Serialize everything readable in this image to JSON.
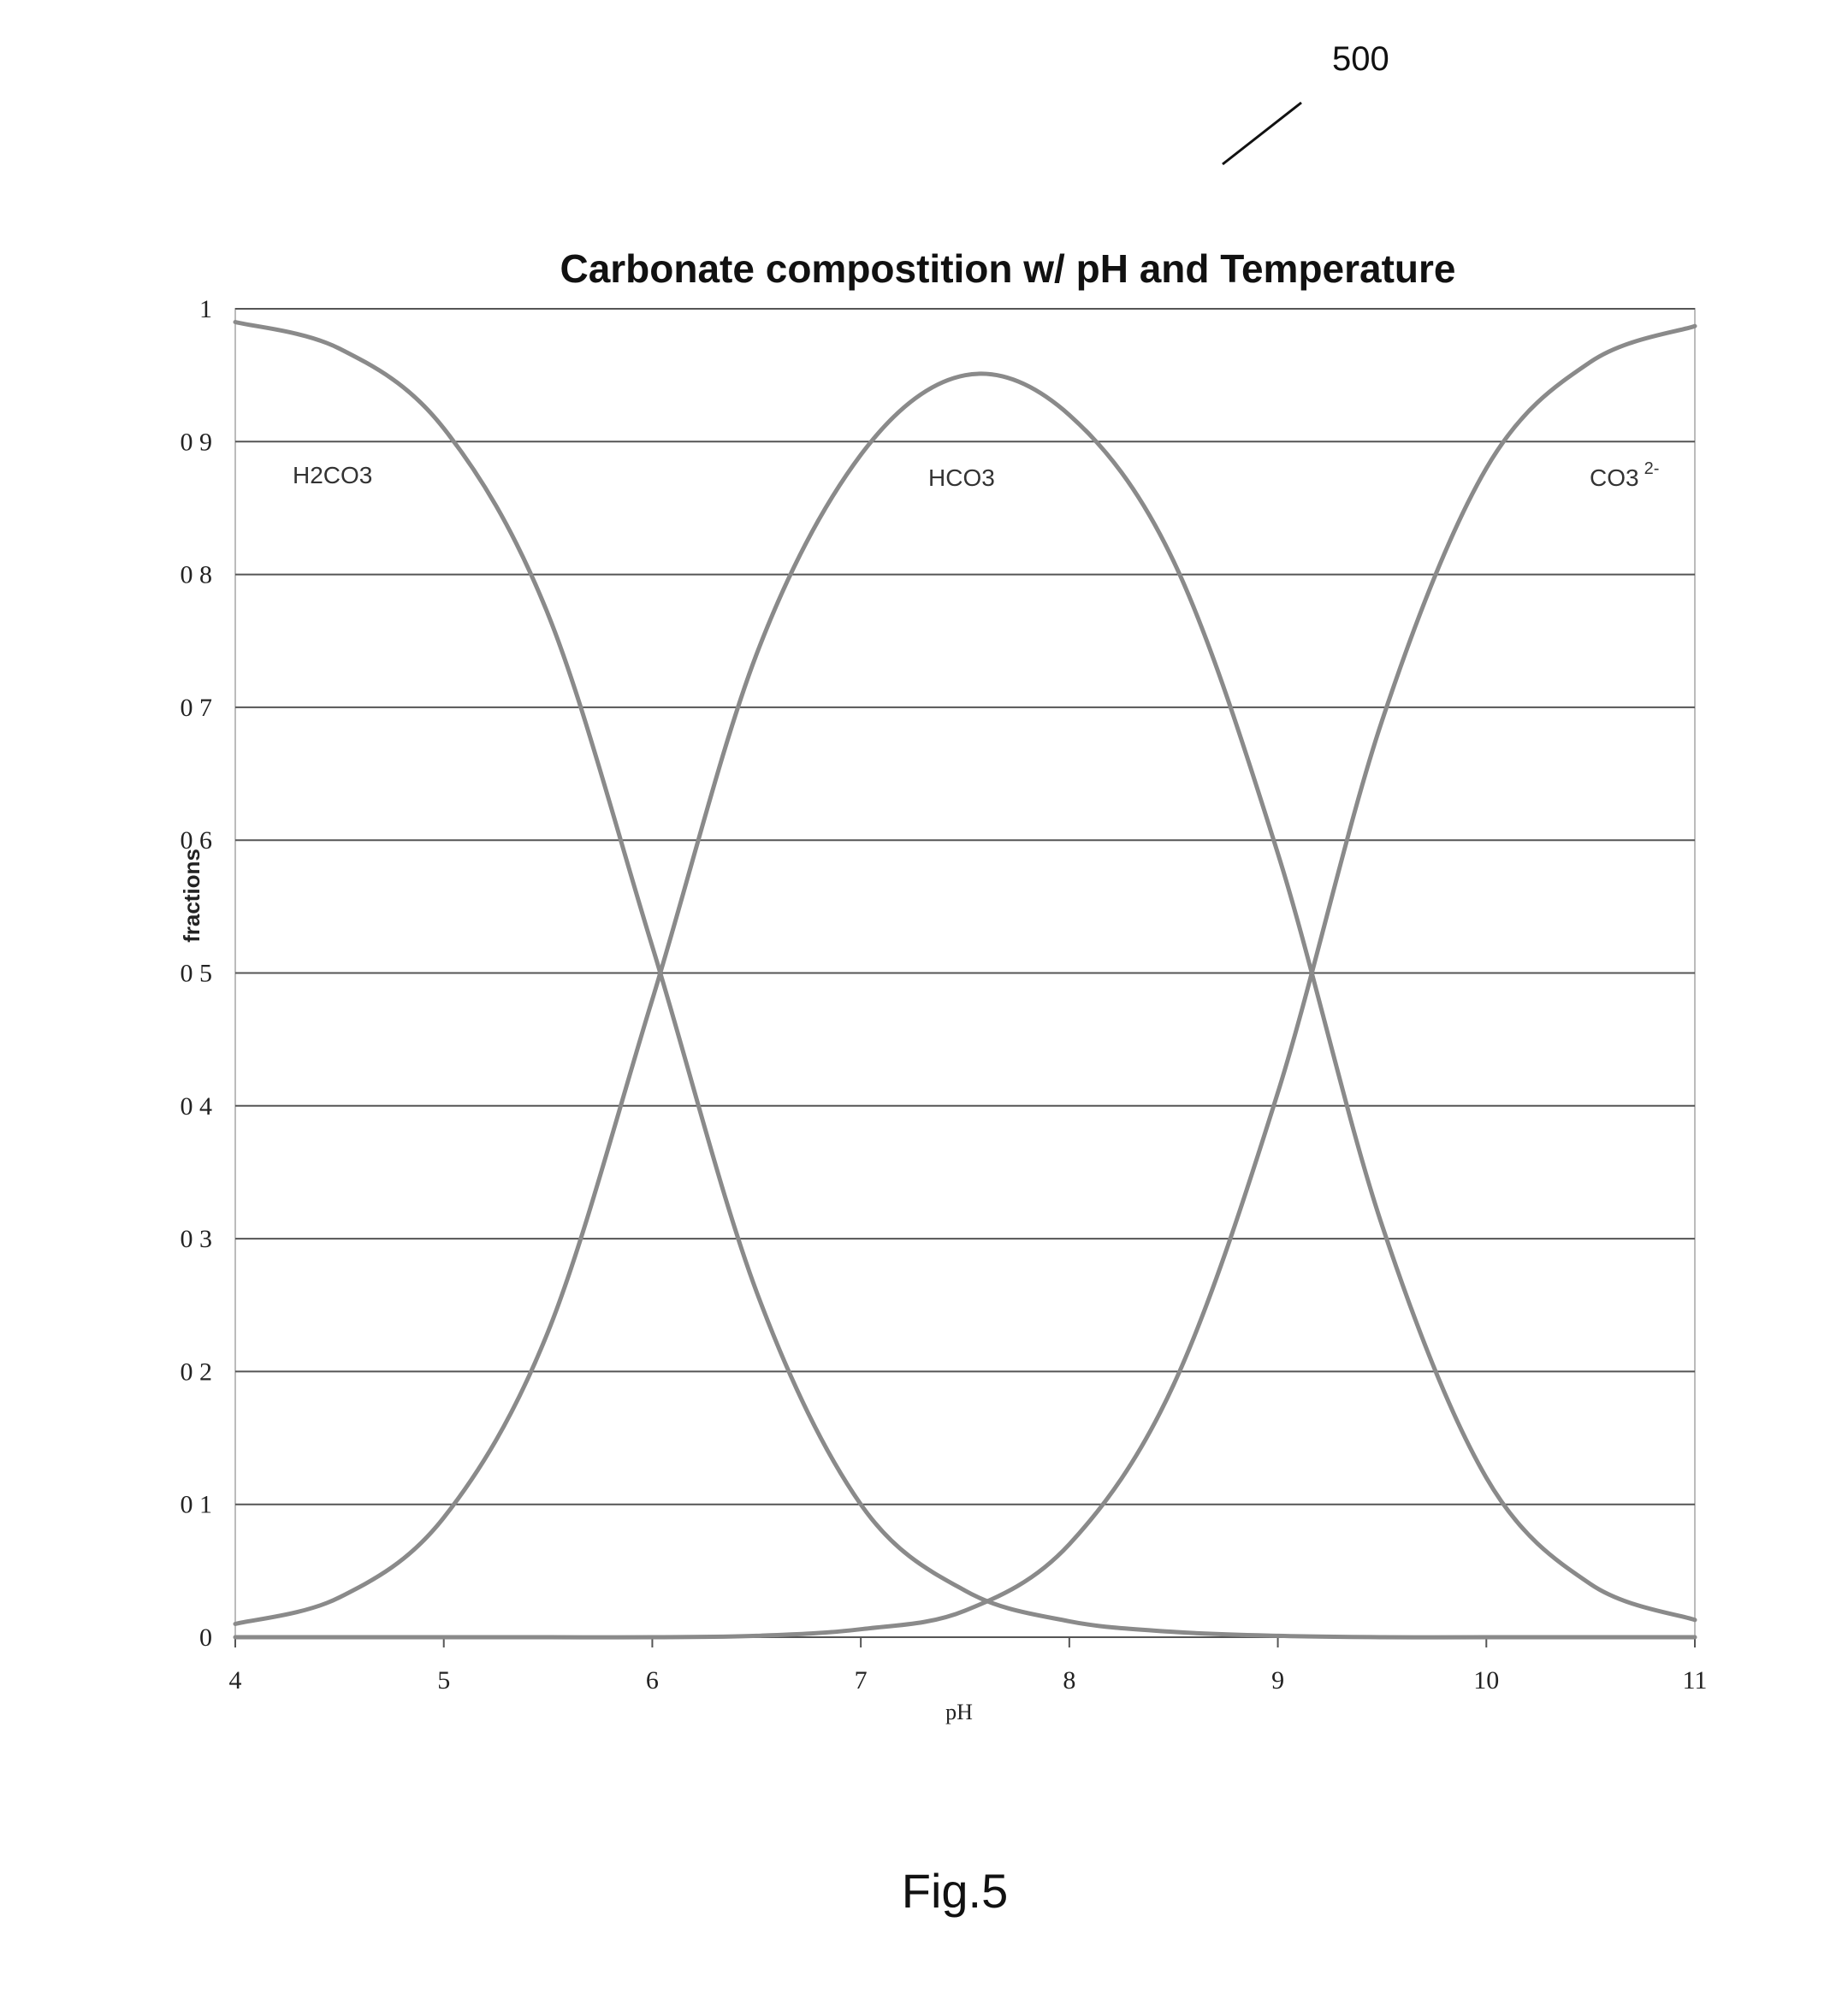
{
  "ref_numeral": "500",
  "figure_caption": "Fig.5",
  "chart_data": {
    "type": "line",
    "title": "Carbonate  compostition w/ pH and Temperature",
    "xlabel": "pH",
    "ylabel": "fractions",
    "xlim": [
      4,
      11
    ],
    "ylim": [
      0,
      1
    ],
    "x_ticks": [
      "4",
      "5",
      "6",
      "7",
      "8",
      "9",
      "10",
      "11"
    ],
    "y_ticks": [
      "0",
      "0 1",
      "0 2",
      "0 3",
      "0 4",
      "0 5",
      "0 6",
      "0 7",
      "0 8",
      "0 9",
      "1"
    ],
    "grid": "horizontal",
    "x": [
      4.0,
      4.5,
      5.0,
      5.5,
      6.0,
      6.5,
      7.0,
      7.5,
      8.0,
      8.5,
      9.0,
      9.5,
      10.0,
      10.5,
      11.0
    ],
    "series": [
      {
        "name": "H2CO3",
        "label": "H2CO3",
        "values": [
          0.99,
          0.97,
          0.91,
          0.77,
          0.52,
          0.26,
          0.1,
          0.035,
          0.012,
          0.004,
          0.001,
          0.0,
          0.0,
          0.0,
          0.0
        ]
      },
      {
        "name": "HCO3",
        "label": "HCO3",
        "values": [
          0.01,
          0.03,
          0.09,
          0.23,
          0.48,
          0.74,
          0.89,
          0.95,
          0.92,
          0.81,
          0.59,
          0.31,
          0.12,
          0.04,
          0.013
        ]
      },
      {
        "name": "CO3 2-",
        "label": "CO3",
        "label_sup": "2-",
        "values": [
          0.0,
          0.0,
          0.0,
          0.0,
          0.0,
          0.001,
          0.006,
          0.02,
          0.07,
          0.19,
          0.41,
          0.69,
          0.88,
          0.96,
          0.987
        ]
      }
    ],
    "line_color": "#8a8a8a"
  }
}
